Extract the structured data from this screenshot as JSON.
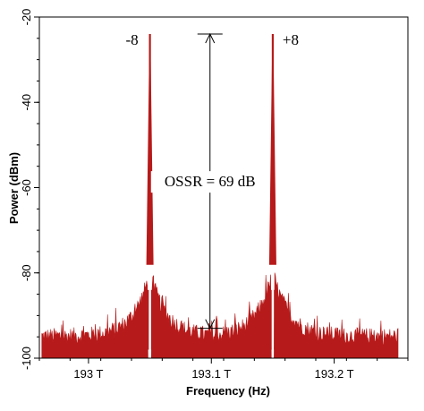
{
  "chart_data": {
    "type": "line",
    "xlabel": "Frequency (Hz)",
    "ylabel": "Power (dBm)",
    "xlim": [
      192.96,
      193.26
    ],
    "ylim": [
      -100,
      -20
    ],
    "x_ticks": [
      193.0,
      193.1,
      193.2
    ],
    "x_tick_labels": [
      "193 T",
      "193.1 T",
      "193.2 T"
    ],
    "y_ticks": [
      -20,
      -40,
      -60,
      -80,
      -100
    ],
    "y_tick_labels": [
      "-20",
      "-40",
      "-60",
      "-80",
      "-100"
    ],
    "grid": false,
    "series": [
      {
        "color": "#b71a1a",
        "noise_floor_dbm": -100,
        "peaks": [
          {
            "x": 193.05,
            "y": -24,
            "label": "-8"
          },
          {
            "x": 193.15,
            "y": -24,
            "label": "+8"
          }
        ]
      }
    ],
    "annotations": [
      {
        "text": "OSSR = 69 dB",
        "x": 193.1,
        "y_top": -24,
        "y_bottom": -93
      }
    ]
  }
}
